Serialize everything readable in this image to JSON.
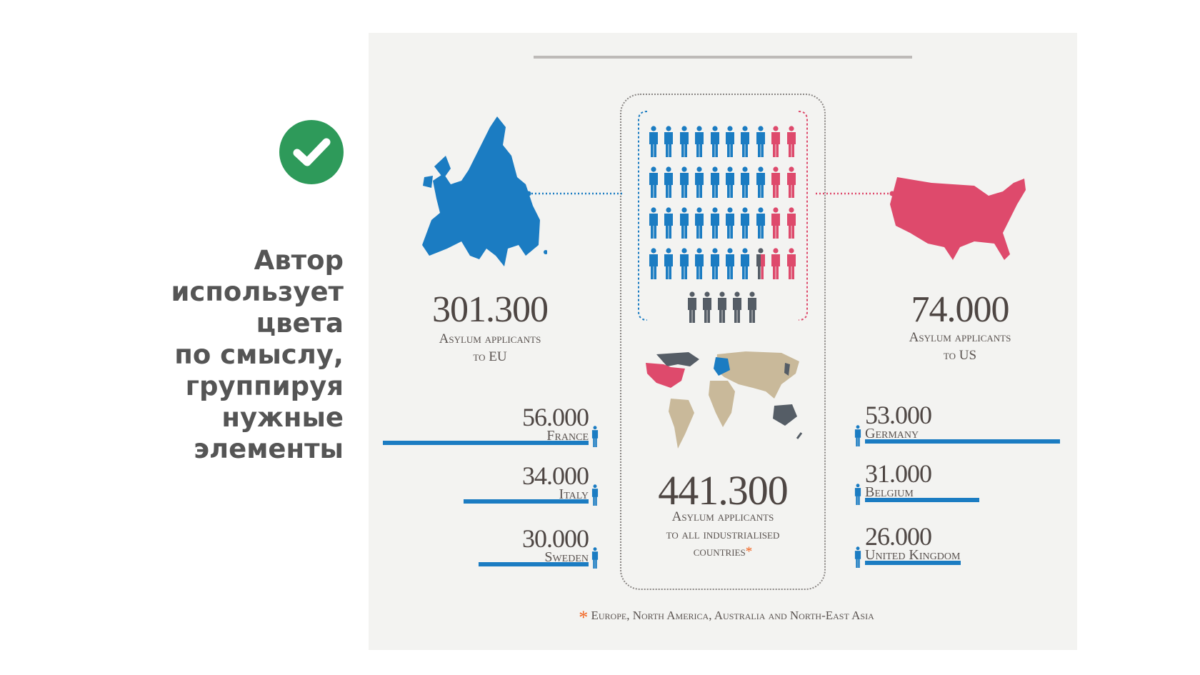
{
  "caption": {
    "lines": [
      "Автор",
      "использует",
      "цвета",
      "по смыслу,",
      "группируя",
      "нужные",
      "элементы"
    ]
  },
  "colors": {
    "eu_blue": "#1b7cc2",
    "us_red": "#de4a6c",
    "other_gray": "#555d66",
    "land_tan": "#c9b99a",
    "check_green": "#2e9a5a",
    "footnote_orange": "#f26522"
  },
  "infographic": {
    "eu": {
      "value": "301.300",
      "label_line1": "Asylum applicants",
      "label_line2": "to EU"
    },
    "us": {
      "value": "74.000",
      "label_line1": "Asylum applicants",
      "label_line2": "to US"
    },
    "total": {
      "value": "441.300",
      "label_line1": "Asylum applicants",
      "label_line2": "to all industrialised",
      "label_line3": "countries",
      "asterisk": "*"
    },
    "left_countries": [
      {
        "value": "56.000",
        "name": "France",
        "thousands": 56
      },
      {
        "value": "34.000",
        "name": "Italy",
        "thousands": 34
      },
      {
        "value": "30.000",
        "name": "Sweden",
        "thousands": 30
      }
    ],
    "right_countries": [
      {
        "value": "53.000",
        "name": "Germany",
        "thousands": 53
      },
      {
        "value": "31.000",
        "name": "Belgium",
        "thousands": 31
      },
      {
        "value": "26.000",
        "name": "United Kingdom",
        "thousands": 26
      }
    ],
    "footnote": {
      "asterisk": "*",
      "text": "Europe, North America, Australia and North-East Asia"
    }
  }
}
